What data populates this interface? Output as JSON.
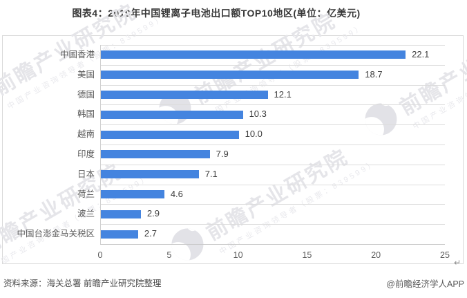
{
  "title": "图表4：2019年中国锂离子电池出口额TOP10地区(单位：亿美元)",
  "footer": {
    "source_label": "资料来源：海关总署 前瞻产业研究院整理",
    "credit": "@前瞻经济学人APP",
    "return_mark": "↵"
  },
  "watermark": {
    "logo_name": "qianzhan-logo",
    "big_text": "前瞻产业研究院",
    "small_text": "中国产业咨询领导者（股票：839599）"
  },
  "colors": {
    "bar": "#4484df",
    "title_text": "#383838",
    "axis_text": "#595959",
    "value_text": "#3d3d3d",
    "gridline": "#dcdcdc",
    "box_border": "#d9d9d9",
    "watermark": "#e5e5e9"
  },
  "chart_data": {
    "type": "bar",
    "orientation": "horizontal",
    "title": "图表4：2019年中国锂离子电池出口额TOP10地区(单位：亿美元)",
    "unit": "亿美元",
    "categories": [
      "中国香港",
      "美国",
      "德国",
      "韩国",
      "越南",
      "印度",
      "日本",
      "荷兰",
      "波兰",
      "中国台澎金马关税区"
    ],
    "values": [
      22.1,
      18.7,
      12.1,
      10.3,
      10.0,
      7.9,
      7.1,
      4.6,
      2.9,
      2.7
    ],
    "value_labels": [
      "22.1",
      "18.7",
      "12.1",
      "10.3",
      "10.0",
      "7.9",
      "7.1",
      "4.6",
      "2.9",
      "2.7"
    ],
    "xlabel": "",
    "ylabel": "",
    "xlim": [
      0,
      25
    ],
    "x_ticks": [
      0,
      5,
      10,
      15,
      20,
      25
    ],
    "grid": "horizontal-category-separators",
    "legend": "none",
    "bar_color": "#4484df"
  }
}
